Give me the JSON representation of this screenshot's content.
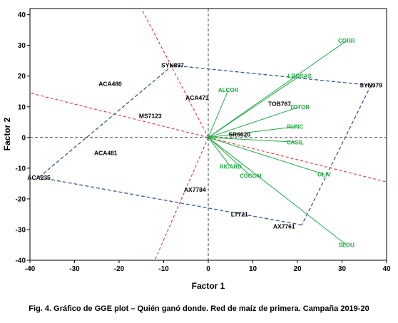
{
  "chart_data": {
    "type": "scatter",
    "title": "",
    "xlabel": "Factor 1",
    "ylabel": "Factor 2",
    "xlim": [
      -40,
      40
    ],
    "ylim": [
      -40,
      42
    ],
    "xticks": [
      -40,
      -30,
      -20,
      -10,
      0,
      10,
      20,
      30,
      40
    ],
    "yticks": [
      -40,
      -30,
      -20,
      -10,
      0,
      10,
      20,
      30,
      40
    ],
    "grid": false,
    "colors": {
      "environment": "#22aa44",
      "polygon": "#3a5a8c",
      "sector_lines": "#e02020",
      "origin_axes": "#444444",
      "genotype_text": "#000000"
    },
    "genotypes": [
      {
        "label": "SYN979",
        "x": 36.5,
        "y": 17
      },
      {
        "label": "SYN897",
        "x": -8,
        "y": 23.5
      },
      {
        "label": "ACA480",
        "x": -22,
        "y": 17.5
      },
      {
        "label": "ACA473",
        "x": -2.5,
        "y": 13
      },
      {
        "label": "MS7123",
        "x": -13,
        "y": 7
      },
      {
        "label": "TOB767",
        "x": 16,
        "y": 11
      },
      {
        "label": "SR6620",
        "x": 7,
        "y": 1
      },
      {
        "label": "ACA481",
        "x": -23,
        "y": -5
      },
      {
        "label": "ACA235",
        "x": -38,
        "y": -13
      },
      {
        "label": "AX7784",
        "x": -3,
        "y": -17
      },
      {
        "label": "LT721",
        "x": 7,
        "y": -25
      },
      {
        "label": "AX7761",
        "x": 17,
        "y": -29
      }
    ],
    "environments": [
      {
        "label": "CORR",
        "x": 31,
        "y": 31.5
      },
      {
        "label": "LROSAS",
        "x": 20.5,
        "y": 20
      },
      {
        "label": "ALCOR",
        "x": 4.5,
        "y": 15.5
      },
      {
        "label": "TOTOR",
        "x": 20.5,
        "y": 10
      },
      {
        "label": "RUNC",
        "x": 19.5,
        "y": 3.5
      },
      {
        "label": "CASIL",
        "x": 19.5,
        "y": -1.5
      },
      {
        "label": "RICARD",
        "x": 5,
        "y": -9.5
      },
      {
        "label": "CDGOM",
        "x": 9.5,
        "y": -12.5
      },
      {
        "label": "OLIV",
        "x": 26,
        "y": -12
      },
      {
        "label": "SEDU",
        "x": 31,
        "y": -35
      }
    ],
    "polygon": [
      {
        "x": -8,
        "y": 23.5
      },
      {
        "x": 36.5,
        "y": 17
      },
      {
        "x": 21,
        "y": -28.5
      },
      {
        "x": -38,
        "y": -13
      },
      {
        "x": -8,
        "y": 23.5
      }
    ],
    "sector_lines": [
      {
        "end": {
          "x": -15,
          "y": 42
        }
      },
      {
        "end": {
          "x": -40,
          "y": 14.5
        }
      },
      {
        "end": {
          "x": -12,
          "y": -40
        }
      },
      {
        "end": {
          "x": 40,
          "y": -14.5
        }
      }
    ]
  },
  "caption": "Fig. 4. Gráfico de GGE plot – Quién ganó donde. Red de maíz de primera. Campaña 2019-20"
}
